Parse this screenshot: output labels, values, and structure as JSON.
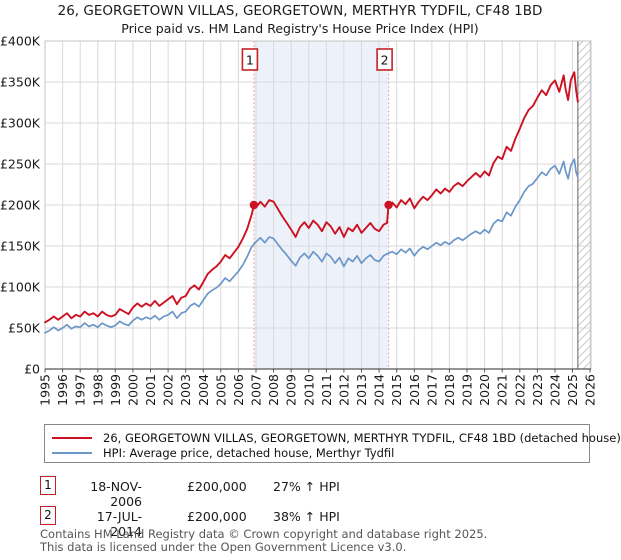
{
  "page": {
    "title": "26, GEORGETOWN VILLAS, GEORGETOWN, MERTHYR TYDFIL, CF48 1BD",
    "subtitle": "Price paid vs. HM Land Registry's House Price Index (HPI)"
  },
  "chart_data": {
    "type": "line",
    "title": "26, GEORGETOWN VILLAS, GEORGETOWN, MERTHYR TYDFIL, CF48 1BD",
    "subtitle": "Price paid vs. HM Land Registry's House Price Index (HPI)",
    "xlabel": "",
    "ylabel": "",
    "xlim": [
      1995,
      2026.05
    ],
    "ylim": [
      0,
      400
    ],
    "grid": true,
    "legend_position": "bottom",
    "x_ticks": [
      1995,
      1996,
      1997,
      1998,
      1999,
      2000,
      2001,
      2002,
      2003,
      2004,
      2005,
      2006,
      2007,
      2008,
      2009,
      2010,
      2011,
      2012,
      2013,
      2014,
      2015,
      2016,
      2017,
      2018,
      2019,
      2020,
      2021,
      2022,
      2023,
      2024,
      2025,
      2026
    ],
    "y_ticks": [
      {
        "value": 0,
        "label": "£0"
      },
      {
        "value": 50,
        "label": "£50K"
      },
      {
        "value": 100,
        "label": "£100K"
      },
      {
        "value": 150,
        "label": "£150K"
      },
      {
        "value": 200,
        "label": "£200K"
      },
      {
        "value": 250,
        "label": "£250K"
      },
      {
        "value": 300,
        "label": "£300K"
      },
      {
        "value": 350,
        "label": "£350K"
      },
      {
        "value": 400,
        "label": "£400K"
      }
    ],
    "unit": "GBP thousands",
    "shaded_span": [
      2006.88,
      2014.54
    ],
    "hatch_span": [
      2025.3,
      2026.05
    ],
    "colors": {
      "price": "#cc1122",
      "hpi": "#6b96c9",
      "marker_line": "#f09a9a",
      "marker_box_border": "#c42127",
      "band": "#edf2fa",
      "grid": "#d9d9d9",
      "spine": "#c4c4c4",
      "axis": "#555555",
      "hatch": "#c9c9c9",
      "hatch_edge": "#8d8d8d",
      "tick_text": "#1a1a1a"
    },
    "sale_markers": [
      {
        "label": "1",
        "x": 2006.88,
        "y": 200
      },
      {
        "label": "2",
        "x": 2014.54,
        "y": 200
      }
    ],
    "series": [
      {
        "name": "26, GEORGETOWN VILLAS, GEORGETOWN, MERTHYR TYDFIL, CF48 1BD (detached house)",
        "color": "#cc1122",
        "points": [
          [
            1995.0,
            57
          ],
          [
            1995.25,
            60
          ],
          [
            1995.5,
            64
          ],
          [
            1995.75,
            60
          ],
          [
            1996.0,
            64
          ],
          [
            1996.25,
            68
          ],
          [
            1996.5,
            62
          ],
          [
            1996.75,
            66
          ],
          [
            1997.0,
            64
          ],
          [
            1997.25,
            70
          ],
          [
            1997.5,
            66
          ],
          [
            1997.75,
            68
          ],
          [
            1998.0,
            64
          ],
          [
            1998.25,
            70
          ],
          [
            1998.5,
            66
          ],
          [
            1998.75,
            64
          ],
          [
            1999.0,
            66
          ],
          [
            1999.25,
            73
          ],
          [
            1999.5,
            70
          ],
          [
            1999.75,
            67
          ],
          [
            2000.0,
            75
          ],
          [
            2000.25,
            80
          ],
          [
            2000.5,
            76
          ],
          [
            2000.75,
            80
          ],
          [
            2001.0,
            77
          ],
          [
            2001.25,
            83
          ],
          [
            2001.5,
            77
          ],
          [
            2001.75,
            81
          ],
          [
            2002.0,
            85
          ],
          [
            2002.25,
            89
          ],
          [
            2002.5,
            79
          ],
          [
            2002.75,
            87
          ],
          [
            2003.0,
            89
          ],
          [
            2003.25,
            98
          ],
          [
            2003.5,
            102
          ],
          [
            2003.75,
            97
          ],
          [
            2004.0,
            106
          ],
          [
            2004.25,
            116
          ],
          [
            2004.5,
            121
          ],
          [
            2004.75,
            125
          ],
          [
            2005.0,
            131
          ],
          [
            2005.25,
            139
          ],
          [
            2005.5,
            135
          ],
          [
            2005.75,
            142
          ],
          [
            2006.0,
            149
          ],
          [
            2006.25,
            159
          ],
          [
            2006.5,
            171
          ],
          [
            2006.75,
            188
          ],
          [
            2006.88,
            200
          ],
          [
            2007.0,
            197
          ],
          [
            2007.25,
            204
          ],
          [
            2007.5,
            198
          ],
          [
            2007.75,
            206
          ],
          [
            2008.0,
            204
          ],
          [
            2008.25,
            195
          ],
          [
            2008.5,
            186
          ],
          [
            2008.75,
            178
          ],
          [
            2009.0,
            170
          ],
          [
            2009.25,
            161
          ],
          [
            2009.5,
            173
          ],
          [
            2009.75,
            179
          ],
          [
            2010.0,
            172
          ],
          [
            2010.25,
            181
          ],
          [
            2010.5,
            176
          ],
          [
            2010.75,
            168
          ],
          [
            2011.0,
            179
          ],
          [
            2011.25,
            174
          ],
          [
            2011.5,
            165
          ],
          [
            2011.75,
            173
          ],
          [
            2012.0,
            161
          ],
          [
            2012.25,
            172
          ],
          [
            2012.5,
            168
          ],
          [
            2012.75,
            176
          ],
          [
            2013.0,
            166
          ],
          [
            2013.25,
            172
          ],
          [
            2013.5,
            178
          ],
          [
            2013.75,
            171
          ],
          [
            2014.0,
            168
          ],
          [
            2014.25,
            176
          ],
          [
            2014.45,
            178
          ],
          [
            2014.54,
            200
          ],
          [
            2014.75,
            203
          ],
          [
            2015.0,
            197
          ],
          [
            2015.25,
            206
          ],
          [
            2015.5,
            201
          ],
          [
            2015.75,
            208
          ],
          [
            2016.0,
            196
          ],
          [
            2016.25,
            204
          ],
          [
            2016.5,
            210
          ],
          [
            2016.75,
            206
          ],
          [
            2017.0,
            212
          ],
          [
            2017.25,
            219
          ],
          [
            2017.5,
            214
          ],
          [
            2017.75,
            220
          ],
          [
            2018.0,
            216
          ],
          [
            2018.25,
            223
          ],
          [
            2018.5,
            227
          ],
          [
            2018.75,
            223
          ],
          [
            2019.0,
            229
          ],
          [
            2019.25,
            234
          ],
          [
            2019.5,
            239
          ],
          [
            2019.75,
            234
          ],
          [
            2020.0,
            241
          ],
          [
            2020.25,
            236
          ],
          [
            2020.5,
            251
          ],
          [
            2020.75,
            259
          ],
          [
            2021.0,
            256
          ],
          [
            2021.25,
            271
          ],
          [
            2021.5,
            266
          ],
          [
            2021.75,
            281
          ],
          [
            2022.0,
            293
          ],
          [
            2022.25,
            306
          ],
          [
            2022.5,
            316
          ],
          [
            2022.75,
            321
          ],
          [
            2023.0,
            331
          ],
          [
            2023.25,
            340
          ],
          [
            2023.5,
            334
          ],
          [
            2023.75,
            346
          ],
          [
            2024.0,
            352
          ],
          [
            2024.25,
            338
          ],
          [
            2024.5,
            358
          ],
          [
            2024.6,
            342
          ],
          [
            2024.75,
            328
          ],
          [
            2024.9,
            352
          ],
          [
            2025.0,
            357
          ],
          [
            2025.1,
            362
          ],
          [
            2025.2,
            340
          ],
          [
            2025.3,
            326
          ]
        ]
      },
      {
        "name": "HPI: Average price, detached house, Merthyr Tydfil",
        "color": "#6b96c9",
        "points": [
          [
            1995.0,
            44
          ],
          [
            1995.25,
            47
          ],
          [
            1995.5,
            51
          ],
          [
            1995.75,
            47
          ],
          [
            1996.0,
            50
          ],
          [
            1996.25,
            54
          ],
          [
            1996.5,
            49
          ],
          [
            1996.75,
            52
          ],
          [
            1997.0,
            51
          ],
          [
            1997.25,
            56
          ],
          [
            1997.5,
            52
          ],
          [
            1997.75,
            54
          ],
          [
            1998.0,
            51
          ],
          [
            1998.25,
            56
          ],
          [
            1998.5,
            53
          ],
          [
            1998.75,
            51
          ],
          [
            1999.0,
            53
          ],
          [
            1999.25,
            58
          ],
          [
            1999.5,
            55
          ],
          [
            1999.75,
            53
          ],
          [
            2000.0,
            59
          ],
          [
            2000.25,
            63
          ],
          [
            2000.5,
            60
          ],
          [
            2000.75,
            63
          ],
          [
            2001.0,
            61
          ],
          [
            2001.25,
            65
          ],
          [
            2001.5,
            60
          ],
          [
            2001.75,
            64
          ],
          [
            2002.0,
            66
          ],
          [
            2002.25,
            70
          ],
          [
            2002.5,
            62
          ],
          [
            2002.75,
            68
          ],
          [
            2003.0,
            70
          ],
          [
            2003.25,
            77
          ],
          [
            2003.5,
            80
          ],
          [
            2003.75,
            76
          ],
          [
            2004.0,
            84
          ],
          [
            2004.25,
            92
          ],
          [
            2004.5,
            96
          ],
          [
            2004.75,
            99
          ],
          [
            2005.0,
            104
          ],
          [
            2005.25,
            111
          ],
          [
            2005.5,
            107
          ],
          [
            2005.75,
            113
          ],
          [
            2006.0,
            119
          ],
          [
            2006.25,
            127
          ],
          [
            2006.5,
            137
          ],
          [
            2006.75,
            149
          ],
          [
            2007.0,
            155
          ],
          [
            2007.25,
            160
          ],
          [
            2007.5,
            154
          ],
          [
            2007.75,
            161
          ],
          [
            2008.0,
            159
          ],
          [
            2008.25,
            152
          ],
          [
            2008.5,
            145
          ],
          [
            2008.75,
            139
          ],
          [
            2009.0,
            132
          ],
          [
            2009.25,
            126
          ],
          [
            2009.5,
            136
          ],
          [
            2009.75,
            141
          ],
          [
            2010.0,
            135
          ],
          [
            2010.25,
            143
          ],
          [
            2010.5,
            138
          ],
          [
            2010.75,
            131
          ],
          [
            2011.0,
            141
          ],
          [
            2011.25,
            137
          ],
          [
            2011.5,
            129
          ],
          [
            2011.75,
            136
          ],
          [
            2012.0,
            125
          ],
          [
            2012.25,
            135
          ],
          [
            2012.5,
            131
          ],
          [
            2012.75,
            138
          ],
          [
            2013.0,
            129
          ],
          [
            2013.25,
            135
          ],
          [
            2013.5,
            139
          ],
          [
            2013.75,
            133
          ],
          [
            2014.0,
            131
          ],
          [
            2014.25,
            138
          ],
          [
            2014.5,
            141
          ],
          [
            2014.75,
            143
          ],
          [
            2015.0,
            140
          ],
          [
            2015.25,
            146
          ],
          [
            2015.5,
            142
          ],
          [
            2015.75,
            147
          ],
          [
            2016.0,
            138
          ],
          [
            2016.25,
            145
          ],
          [
            2016.5,
            149
          ],
          [
            2016.75,
            146
          ],
          [
            2017.0,
            150
          ],
          [
            2017.25,
            154
          ],
          [
            2017.5,
            151
          ],
          [
            2017.75,
            155
          ],
          [
            2018.0,
            152
          ],
          [
            2018.25,
            157
          ],
          [
            2018.5,
            160
          ],
          [
            2018.75,
            157
          ],
          [
            2019.0,
            161
          ],
          [
            2019.25,
            165
          ],
          [
            2019.5,
            168
          ],
          [
            2019.75,
            165
          ],
          [
            2020.0,
            170
          ],
          [
            2020.25,
            166
          ],
          [
            2020.5,
            177
          ],
          [
            2020.75,
            182
          ],
          [
            2021.0,
            180
          ],
          [
            2021.25,
            191
          ],
          [
            2021.5,
            187
          ],
          [
            2021.75,
            198
          ],
          [
            2022.0,
            206
          ],
          [
            2022.25,
            216
          ],
          [
            2022.5,
            223
          ],
          [
            2022.75,
            226
          ],
          [
            2023.0,
            233
          ],
          [
            2023.25,
            240
          ],
          [
            2023.5,
            236
          ],
          [
            2023.75,
            244
          ],
          [
            2024.0,
            248
          ],
          [
            2024.25,
            238
          ],
          [
            2024.5,
            253
          ],
          [
            2024.6,
            242
          ],
          [
            2024.75,
            232
          ],
          [
            2024.9,
            248
          ],
          [
            2025.0,
            252
          ],
          [
            2025.1,
            256
          ],
          [
            2025.2,
            240
          ],
          [
            2025.3,
            234
          ]
        ]
      }
    ]
  },
  "legend": {
    "items": [
      {
        "label": "26, GEORGETOWN VILLAS, GEORGETOWN, MERTHYR TYDFIL, CF48 1BD (detached house)"
      },
      {
        "label": "HPI: Average price, detached house, Merthyr Tydfil"
      }
    ]
  },
  "transactions": [
    {
      "num": "1",
      "date": "18-NOV-2006",
      "price": "£200,000",
      "hpi_delta": "27% ↑ HPI"
    },
    {
      "num": "2",
      "date": "17-JUL-2014",
      "price": "£200,000",
      "hpi_delta": "38% ↑ HPI"
    }
  ],
  "footer": {
    "line1": "Contains HM Land Registry data © Crown copyright and database right 2025.",
    "line2": "This data is licensed under the Open Government Licence v3.0."
  }
}
